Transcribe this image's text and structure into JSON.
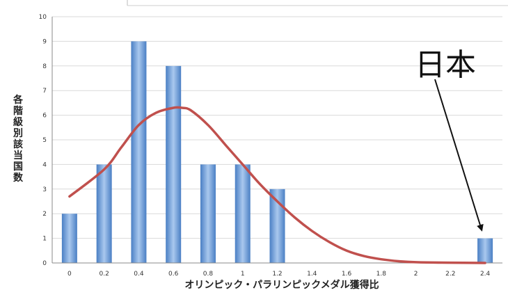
{
  "chart_data": {
    "type": "bar",
    "xlabel": "オリンピック・パラリンピックメダル獲得比",
    "ylabel": "各階級別該当国数",
    "categories": [
      "0",
      "0.2",
      "0.4",
      "0.6",
      "0.8",
      "1",
      "1.2",
      "1.4",
      "1.6",
      "1.8",
      "2",
      "2.2",
      "2.4"
    ],
    "values": [
      2,
      4,
      9,
      8,
      4,
      4,
      3,
      0,
      0,
      0,
      0,
      0,
      1
    ],
    "ylim": [
      0,
      10
    ],
    "yticks": [
      "0",
      "1",
      "2",
      "3",
      "4",
      "5",
      "6",
      "7",
      "8",
      "9",
      "10"
    ],
    "grid": true,
    "legend": "none",
    "bar_color": "#5b8fd0",
    "curve": {
      "type": "line",
      "color": "#c0504d",
      "x": [
        0,
        0.2,
        0.3,
        0.4,
        0.5,
        0.6,
        0.65,
        0.7,
        0.8,
        0.9,
        1.0,
        1.1,
        1.2,
        1.3,
        1.4,
        1.5,
        1.6,
        1.7,
        1.8,
        1.9,
        2.0,
        2.2,
        2.4
      ],
      "y": [
        2.7,
        3.8,
        4.7,
        5.6,
        6.1,
        6.3,
        6.3,
        6.2,
        5.6,
        4.8,
        4.0,
        3.2,
        2.5,
        1.85,
        1.3,
        0.85,
        0.5,
        0.28,
        0.15,
        0.07,
        0.03,
        0.01,
        0.0
      ]
    },
    "annotation": {
      "text": "日本",
      "target": "2.4"
    }
  }
}
